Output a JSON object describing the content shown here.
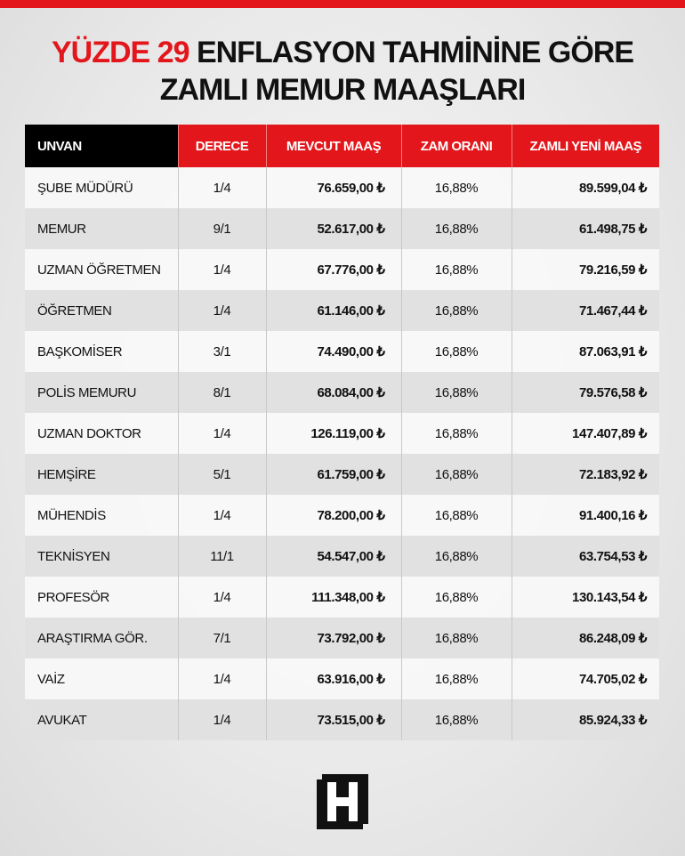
{
  "header": {
    "title_highlight": "YÜZDE 29",
    "title_rest": "ENFLASYON TAHMİNİNE GÖRE",
    "title_line2": "ZAMLI MEMUR MAAŞLARI"
  },
  "table": {
    "columns": [
      "UNVAN",
      "DERECE",
      "MEVCUT MAAŞ",
      "ZAM ORANI",
      "ZAMLI YENİ MAAŞ"
    ],
    "rows": [
      [
        "ŞUBE MÜDÜRÜ",
        "1/4",
        "76.659,00 ₺",
        "16,88%",
        "89.599,04 ₺"
      ],
      [
        "MEMUR",
        "9/1",
        "52.617,00 ₺",
        "16,88%",
        "61.498,75 ₺"
      ],
      [
        "UZMAN ÖĞRETMEN",
        "1/4",
        "67.776,00 ₺",
        "16,88%",
        "79.216,59 ₺"
      ],
      [
        "ÖĞRETMEN",
        "1/4",
        "61.146,00 ₺",
        "16,88%",
        "71.467,44 ₺"
      ],
      [
        "BAŞKOMİSER",
        "3/1",
        "74.490,00 ₺",
        "16,88%",
        "87.063,91 ₺"
      ],
      [
        "POLİS MEMURU",
        "8/1",
        "68.084,00 ₺",
        "16,88%",
        "79.576,58 ₺"
      ],
      [
        "UZMAN DOKTOR",
        "1/4",
        "126.119,00 ₺",
        "16,88%",
        "147.407,89 ₺"
      ],
      [
        "HEMŞİRE",
        "5/1",
        "61.759,00 ₺",
        "16,88%",
        "72.183,92 ₺"
      ],
      [
        "MÜHENDİS",
        "1/4",
        "78.200,00 ₺",
        "16,88%",
        "91.400,16 ₺"
      ],
      [
        "TEKNİSYEN",
        "11/1",
        "54.547,00 ₺",
        "16,88%",
        "63.754,53 ₺"
      ],
      [
        "PROFESÖR",
        "1/4",
        "111.348,00 ₺",
        "16,88%",
        "130.143,54 ₺"
      ],
      [
        "ARAŞTIRMA GÖR.",
        "7/1",
        "73.792,00 ₺",
        "16,88%",
        "86.248,09 ₺"
      ],
      [
        "VAİZ",
        "1/4",
        "63.916,00 ₺",
        "16,88%",
        "74.705,02 ₺"
      ],
      [
        "AVUKAT",
        "1/4",
        "73.515,00 ₺",
        "16,88%",
        "85.924,33 ₺"
      ]
    ]
  }
}
